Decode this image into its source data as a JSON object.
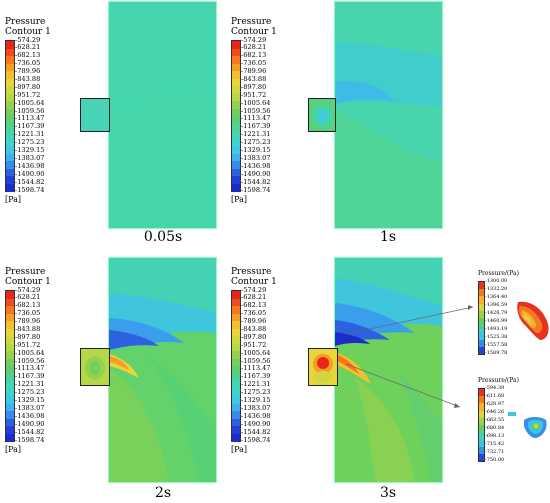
{
  "panels": [
    {
      "caption": "0.05s"
    },
    {
      "caption": "1s"
    },
    {
      "caption": "2s"
    },
    {
      "caption": "3s"
    }
  ],
  "legend": {
    "title_line1": "Pressure",
    "title_line2": "Contour 1",
    "unit": "[Pa]",
    "ticks": [
      "-574.29",
      "-628.21",
      "-682.13",
      "-736.05",
      "-789.96",
      "-843.88",
      "-897.80",
      "-951.72",
      "-1005.64",
      "-1059.56",
      "-1113.47",
      "-1167.39",
      "-1221.31",
      "-1275.23",
      "-1329.15",
      "-1383.07",
      "-1436.98",
      "-1490.90",
      "-1544.82",
      "-1598.74"
    ],
    "colors": [
      "#e8251b",
      "#ef4b1c",
      "#f7761e",
      "#f59e25",
      "#f2bf2e",
      "#e9d43a",
      "#d2d73f",
      "#b6d846",
      "#93d24f",
      "#74cf5a",
      "#5ccf74",
      "#4ed295",
      "#43d5b4",
      "#3ed3cf",
      "#3fc8e6",
      "#3db2ee",
      "#358ce9",
      "#2c62e0",
      "#2240d6",
      "#1b2bcc"
    ]
  },
  "inset_top": {
    "title": "Pressure/(Pa)",
    "ticks": [
      "-1300.00",
      "-1332.20",
      "-1364.40",
      "-1396.59",
      "-1428.79",
      "-1460.99",
      "-1493.19",
      "-1525.38",
      "-1557.58",
      "-1589.78"
    ],
    "colors": [
      "#e53221",
      "#f07a22",
      "#f7b12b",
      "#dcd43c",
      "#9fd24b",
      "#62cf67",
      "#45d2a6",
      "#3fc4e2",
      "#3290ea",
      "#2446d6"
    ]
  },
  "inset_bottom": {
    "title": "Pressure/(Pa)",
    "ticks": [
      "-594.39",
      "-611.68",
      "-628.97",
      "-646.26",
      "-663.55",
      "-680.84",
      "-698.13",
      "-715.42",
      "-732.71",
      "-750.00"
    ],
    "colors": [
      "#e53221",
      "#f07a22",
      "#f7b12b",
      "#dcd43c",
      "#9fd24b",
      "#62cf67",
      "#45d2a6",
      "#3fc4e2",
      "#3290ea",
      "#2446d6"
    ]
  }
}
